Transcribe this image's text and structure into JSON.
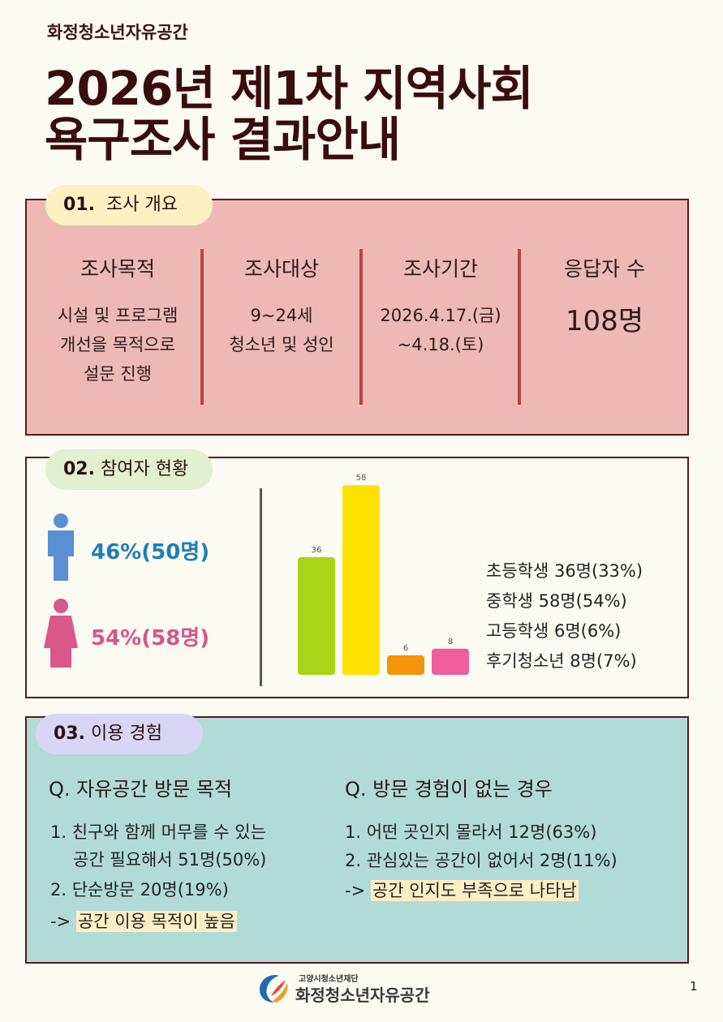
{
  "header": {
    "org": "화정청소년자유공간",
    "title_line1": "2026년 제1차 지역사회",
    "title_line2": "욕구조사 결과안내"
  },
  "overview": {
    "pill_num": "01.",
    "pill_label": "조사 개요",
    "columns": [
      {
        "head": "조사목적",
        "lines": [
          "시설 및 프로그램",
          "개선을 목적으로",
          "설문 진행"
        ]
      },
      {
        "head": "조사대상",
        "lines": [
          "9~24세",
          "청소년 및 성인"
        ]
      },
      {
        "head": "조사기간",
        "lines": [
          "2026.4.17.(금)",
          "~4.18.(토)"
        ]
      },
      {
        "head": "응답자 수",
        "value": "108명"
      }
    ]
  },
  "participants": {
    "pill_num": "02.",
    "pill_label": "참여자 현황",
    "male": "46%(50명)",
    "female": "54%(58명)",
    "male_color": "#5b8fd4",
    "female_color": "#d8588a",
    "legend": [
      "초등학생 36명(33%)",
      "중학생 58명(54%)",
      "고등학생 6명(6%)",
      "후기청소년 8명(7%)"
    ]
  },
  "chart_data": {
    "type": "bar",
    "categories": [
      "초등학생",
      "중학생",
      "고등학생",
      "후기청소년"
    ],
    "values": [
      36,
      58,
      6,
      8
    ],
    "colors": [
      "#a9d418",
      "#ffe100",
      "#f4940c",
      "#ee5e9a"
    ],
    "ylim": [
      0,
      65
    ],
    "grid": false,
    "xlabel": "",
    "ylabel": ""
  },
  "experience": {
    "pill_num": "03.",
    "pill_label": "이용 경험",
    "left": {
      "head": "Q. 자유공간 방문 목적",
      "line1": "1. 친구와 함께 머무를 수 있는",
      "line2": "공간 필요해서 51명(50%)",
      "line3": "2. 단순방문 20명(19%)",
      "arrow": "->",
      "highlight": "공간 이용 목적이 높음"
    },
    "right": {
      "head": "Q. 방문 경험이 없는 경우",
      "line1": "1. 어떤 곳인지 몰라서 12명(63%)",
      "line2": "2. 관심있는 공간이 없어서 2명(11%)",
      "arrow": "->",
      "highlight": "공간 인지도 부족으로 나타남"
    }
  },
  "footer": {
    "foundation": "고양시청소년재단",
    "name": "화정청소년자유공간",
    "page": "1"
  }
}
